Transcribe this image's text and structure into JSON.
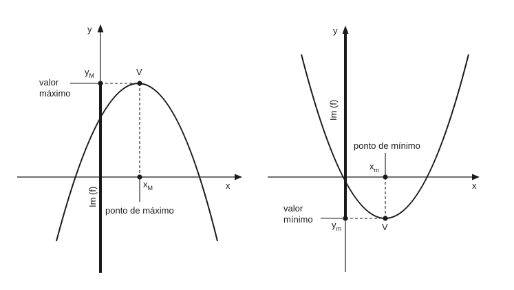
{
  "colors": {
    "ink": "#1a1a1a",
    "background": "#ffffff"
  },
  "left_graph": {
    "y_axis_label": "y",
    "x_axis_label": "x",
    "yM_main": "y",
    "yM_sub": "M",
    "vertex_label": "V",
    "value_label_line1": "valor",
    "value_label_line2": "máximo",
    "xM_main": "x",
    "xM_sub": "M",
    "image_label": "Im (f)",
    "point_label": "ponto de máximo"
  },
  "right_graph": {
    "y_axis_label": "y",
    "x_axis_label": "x",
    "image_label": "Im (f)",
    "point_label": "ponto de mínimo",
    "xm_main": "x",
    "xm_sub": "m",
    "value_label_line1": "valor",
    "value_label_line2": "mínimo",
    "ym_main": "y",
    "ym_sub": "m",
    "vertex_label": "V"
  }
}
